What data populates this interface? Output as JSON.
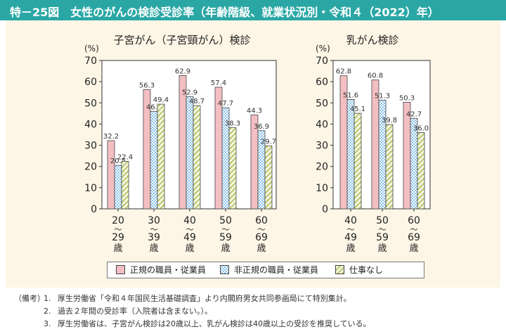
{
  "header": {
    "title": "特－25図　女性のがんの検診受診率（年齢階級、就業状況別・令和４（2022）年）"
  },
  "colors": {
    "header": "#2aa7a5",
    "panel": "#fdf6e6",
    "regular": "#f3bfc3",
    "non_regular": "#d7ebf7",
    "no_job": "#e9edc9"
  },
  "legend": [
    {
      "label": "正規の職員・従業員",
      "pattern": "solid-pink"
    },
    {
      "label": "非正規の職員・従業員",
      "pattern": "checker-blue"
    },
    {
      "label": "仕事なし",
      "pattern": "diagonal-green"
    }
  ],
  "notes": {
    "prefix": "（備考）",
    "items": [
      {
        "num": "1.",
        "text": "厚生労働省「令和４年国民生活基礎調査」より内閣府男女共同参画局にて特別集計。"
      },
      {
        "num": "2.",
        "text": "過去２年間の受診率（入院者は含まない。）。"
      },
      {
        "num": "3.",
        "text": "厚生労働省は、子宮がん検診は20歳以上、乳がん検診は40歳以上の受診を推奨している。"
      }
    ]
  },
  "chart_data": [
    {
      "type": "bar",
      "title": "子宮がん（子宮頸がん）検診",
      "unit": "(%)",
      "ylim": [
        0,
        70
      ],
      "yticks": [
        0,
        10,
        20,
        30,
        40,
        50,
        60,
        70
      ],
      "categories": [
        [
          "20",
          "～",
          "29",
          "歳"
        ],
        [
          "30",
          "～",
          "39",
          "歳"
        ],
        [
          "40",
          "～",
          "49",
          "歳"
        ],
        [
          "50",
          "～",
          "59",
          "歳"
        ],
        [
          "60",
          "～",
          "69",
          "歳"
        ]
      ],
      "series": [
        {
          "name": "正規の職員・従業員",
          "values": [
            32.2,
            56.3,
            62.9,
            57.4,
            44.3
          ]
        },
        {
          "name": "非正規の職員・従業員",
          "values": [
            20.5,
            46.0,
            52.9,
            47.7,
            36.9
          ]
        },
        {
          "name": "仕事なし",
          "values": [
            22.4,
            49.4,
            48.7,
            38.3,
            29.7
          ]
        }
      ]
    },
    {
      "type": "bar",
      "title": "乳がん検診",
      "unit": "(%)",
      "ylim": [
        0,
        70
      ],
      "yticks": [
        0,
        10,
        20,
        30,
        40,
        50,
        60,
        70
      ],
      "categories": [
        [
          "40",
          "～",
          "49",
          "歳"
        ],
        [
          "50",
          "～",
          "59",
          "歳"
        ],
        [
          "60",
          "～",
          "69",
          "歳"
        ]
      ],
      "series": [
        {
          "name": "正規の職員・従業員",
          "values": [
            62.8,
            60.8,
            50.3
          ]
        },
        {
          "name": "非正規の職員・従業員",
          "values": [
            51.6,
            51.3,
            42.7
          ]
        },
        {
          "name": "仕事なし",
          "values": [
            45.1,
            39.8,
            36.0
          ]
        }
      ]
    }
  ]
}
